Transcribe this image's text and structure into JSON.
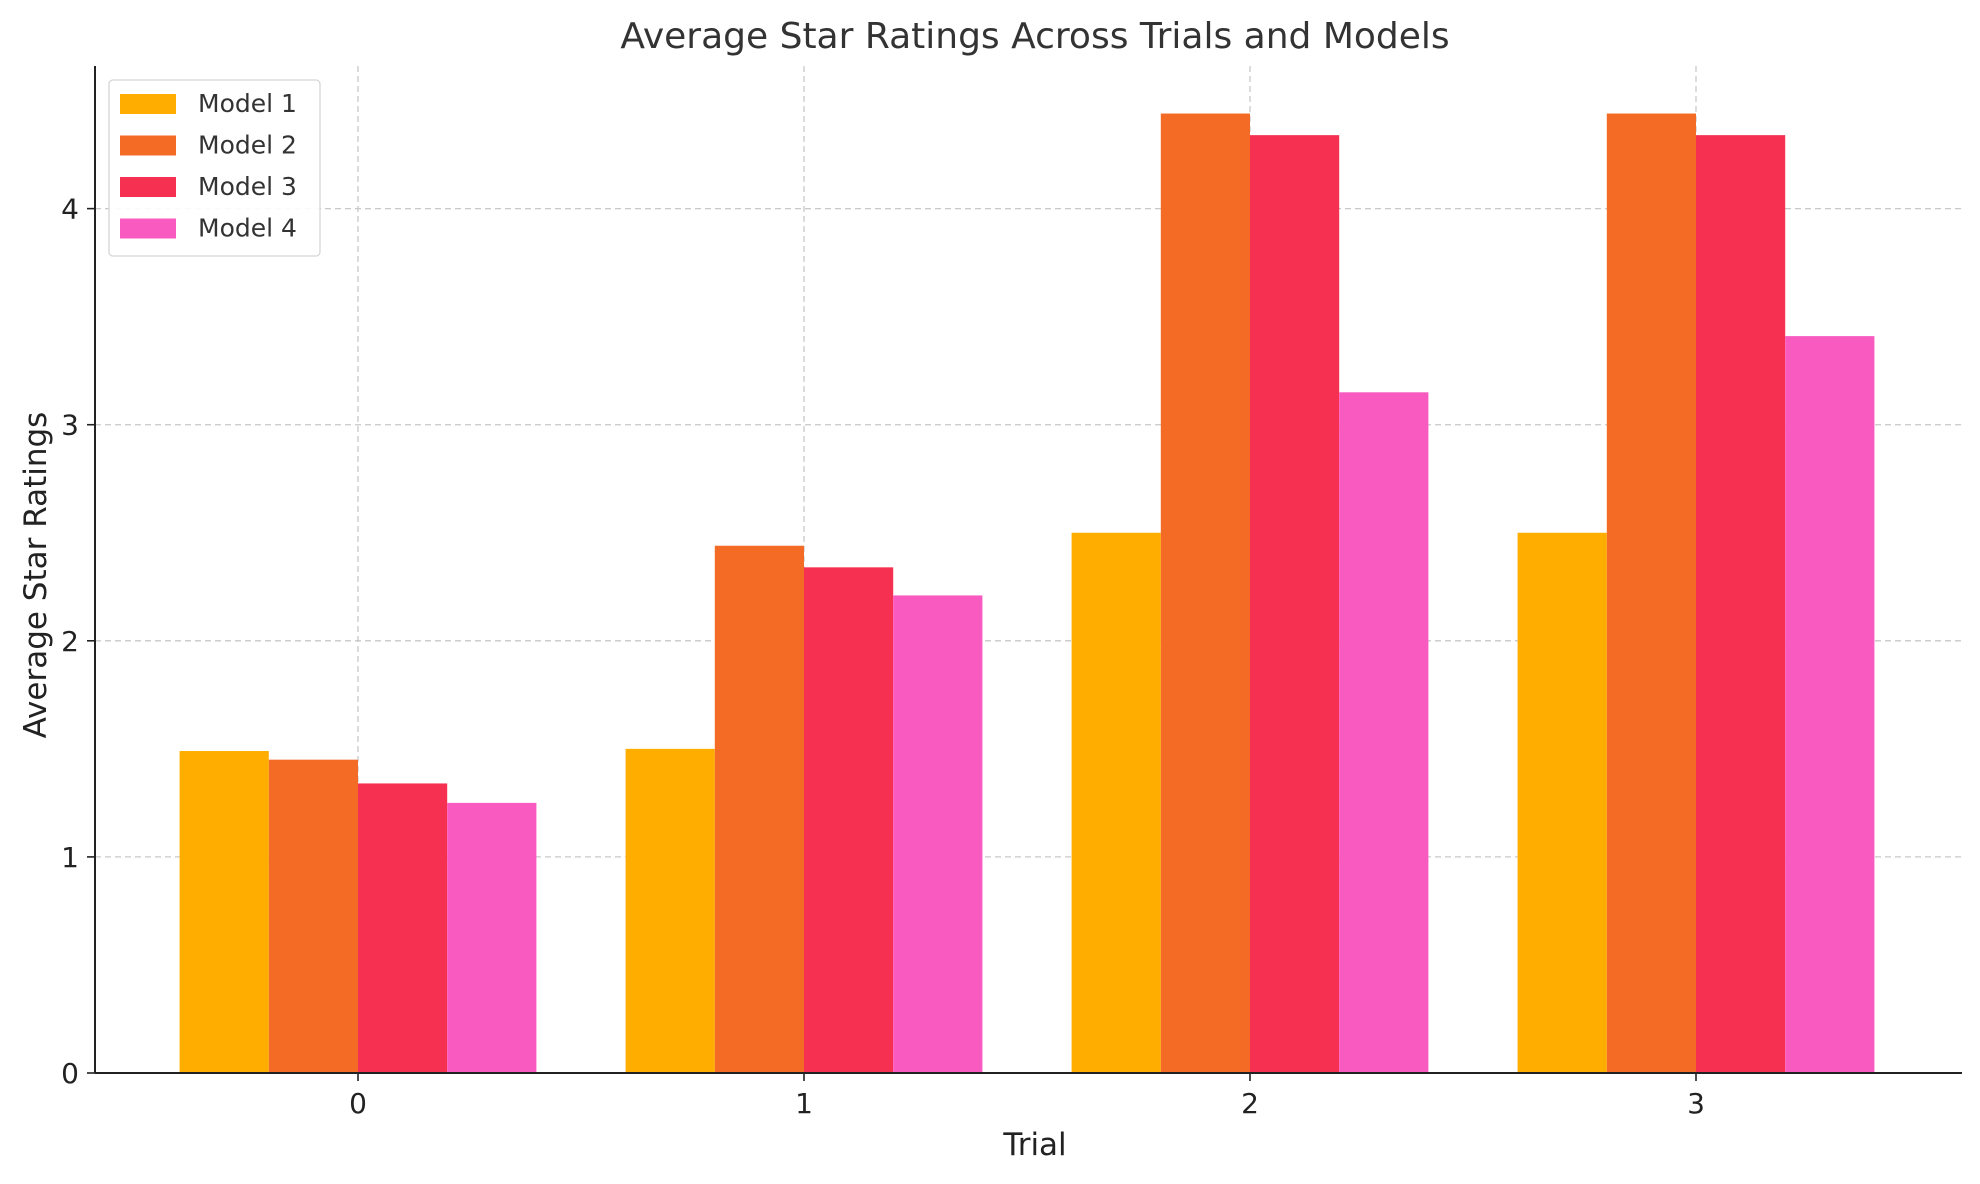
{
  "chart_data": {
    "type": "bar",
    "title": "Average Star Ratings Across Trials and Models",
    "xlabel": "Trial",
    "ylabel": "Average Star Ratings",
    "categories": [
      "0",
      "1",
      "2",
      "3"
    ],
    "ylim": [
      0,
      4.66
    ],
    "yticks": [
      0,
      1,
      2,
      3,
      4
    ],
    "grid": true,
    "legend_position": "top-left",
    "series": [
      {
        "name": "Model 1",
        "color": "#FFAE00",
        "values": [
          1.49,
          1.5,
          2.5,
          2.5
        ]
      },
      {
        "name": "Model 2",
        "color": "#F46B25",
        "values": [
          1.45,
          2.44,
          4.44,
          4.44
        ]
      },
      {
        "name": "Model 3",
        "color": "#F53051",
        "values": [
          1.34,
          2.34,
          4.34,
          4.34
        ]
      },
      {
        "name": "Model 4",
        "color": "#F95ABF",
        "values": [
          1.25,
          2.21,
          3.15,
          3.41
        ]
      }
    ]
  }
}
